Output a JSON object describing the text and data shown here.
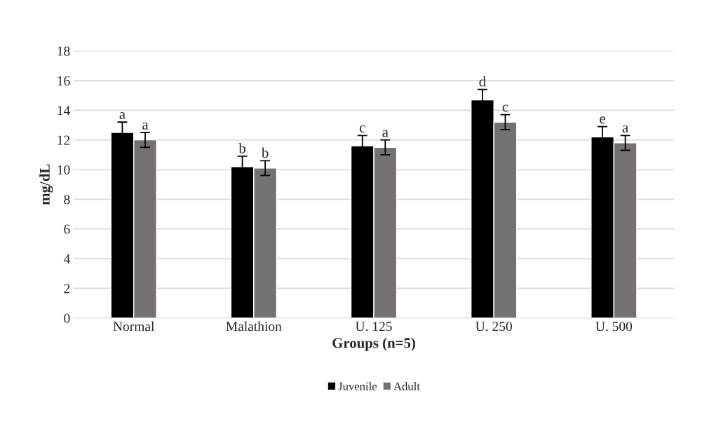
{
  "chart_data": {
    "type": "bar",
    "xlabel": "Groups (n=5)",
    "ylabel": "mg/dL",
    "categories": [
      "Normal",
      "Malathion",
      "U. 125",
      "U. 250",
      "U. 500"
    ],
    "series": [
      {
        "name": "Juvenile",
        "color": "#000000",
        "values": [
          12.5,
          10.2,
          11.6,
          14.7,
          12.2
        ],
        "errors": [
          0.7,
          0.7,
          0.7,
          0.7,
          0.7
        ],
        "value_labels": [
          "a",
          "b",
          "c",
          "d",
          "e"
        ]
      },
      {
        "name": "Adult",
        "color": "#767171",
        "values": [
          12.0,
          10.1,
          11.5,
          13.2,
          11.8
        ],
        "errors": [
          0.5,
          0.5,
          0.5,
          0.5,
          0.5
        ],
        "value_labels": [
          "a",
          "b",
          "a",
          "c",
          "a"
        ]
      }
    ],
    "ylim": [
      0,
      18
    ],
    "yticks": [
      0,
      2,
      4,
      6,
      8,
      10,
      12,
      14,
      16,
      18
    ],
    "grid": "y",
    "legend": "bottom"
  }
}
